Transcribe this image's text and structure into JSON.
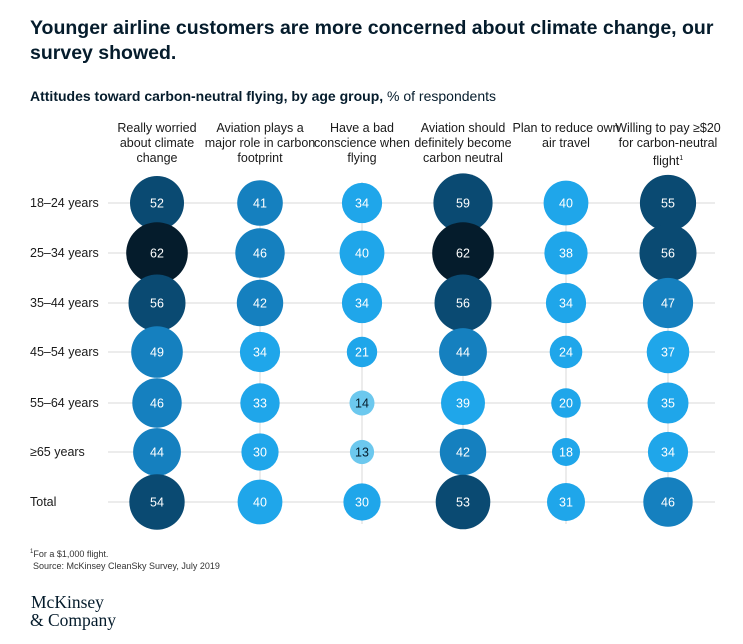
{
  "header": {
    "title": "Younger airline customers are more concerned about climate change, our survey showed.",
    "subtitle_bold": "Attitudes toward carbon-neutral flying, by age group,",
    "subtitle_rest": " % of respondents"
  },
  "chart_data": {
    "type": "heatmap",
    "columns": [
      "Really worried about climate change",
      "Aviation plays a major role in carbon footprint",
      "Have a bad conscience when flying",
      "Aviation should definitely become carbon neutral",
      "Plan to reduce own air travel",
      "Willing to pay ≥$20 for carbon-neutral flight"
    ],
    "column_footnote_marks": [
      "",
      "",
      "",
      "",
      "",
      "1"
    ],
    "rows": [
      "18–24 years",
      "25–34 years",
      "35–44 years",
      "45–54 years",
      "55–64 years",
      "≥65 years",
      "Total"
    ],
    "values": [
      [
        52,
        41,
        34,
        59,
        40,
        55
      ],
      [
        62,
        46,
        40,
        62,
        38,
        56
      ],
      [
        56,
        42,
        34,
        56,
        34,
        47
      ],
      [
        49,
        34,
        21,
        44,
        24,
        37
      ],
      [
        46,
        33,
        14,
        39,
        20,
        35
      ],
      [
        44,
        30,
        13,
        42,
        18,
        34
      ],
      [
        54,
        40,
        30,
        53,
        31,
        46
      ]
    ],
    "unit": "% of respondents",
    "colors": {
      "darkest": "#051c2c",
      "dark": "#0a4a72",
      "medium": "#1580bf",
      "bright": "#1fa6ea",
      "light": "#6cc8ee",
      "grid": "#d9d9d9",
      "label_on_dark": "#ffffff",
      "label_on_light": "#051c2c"
    }
  },
  "footnotes": {
    "mark": "1",
    "note": "For a $1,000 flight.",
    "source": "Source: McKinsey CleanSky Survey, July 2019"
  },
  "logo": {
    "line1": "McKinsey",
    "line2": "& Company"
  }
}
